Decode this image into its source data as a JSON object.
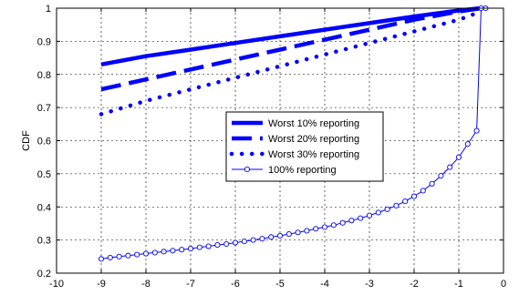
{
  "chart_data": {
    "type": "line",
    "title": "",
    "xlabel": "",
    "ylabel": "CDF",
    "xlim": [
      -10,
      0
    ],
    "ylim": [
      0.2,
      1
    ],
    "xticks": [
      -10,
      -9,
      -8,
      -7,
      -6,
      -5,
      -4,
      -3,
      -2,
      -1,
      0
    ],
    "yticks": [
      0.2,
      0.3,
      0.4,
      0.5,
      0.6,
      0.7,
      0.8,
      0.9,
      1
    ],
    "xtick_labels": [
      "-10",
      "-9",
      "-8",
      "-7",
      "-6",
      "-5",
      "-4",
      "-3",
      "-2",
      "-1",
      "0"
    ],
    "ytick_labels": [
      "0.2",
      "0.3",
      "0.4",
      "0.5",
      "0.6",
      "0.7",
      "0.8",
      "0.9",
      "1"
    ],
    "grid": true,
    "legend_position": "center-right",
    "series": [
      {
        "name": "Worst 10% reporting",
        "style": "solid-thick",
        "color": "#0000ff",
        "x": [
          -9,
          -8,
          -7,
          -6,
          -5,
          -4,
          -3,
          -2,
          -1,
          -0.5
        ],
        "y": [
          0.83,
          0.855,
          0.875,
          0.895,
          0.915,
          0.935,
          0.955,
          0.975,
          0.993,
          1.0
        ]
      },
      {
        "name": "Worst 20% reporting",
        "style": "dashed-thick",
        "color": "#0000ff",
        "x": [
          -9,
          -8,
          -7,
          -6,
          -5,
          -4,
          -3,
          -2,
          -1,
          -0.5
        ],
        "y": [
          0.755,
          0.785,
          0.815,
          0.845,
          0.875,
          0.905,
          0.935,
          0.965,
          0.99,
          1.0
        ]
      },
      {
        "name": "Worst 30% reporting",
        "style": "dotted-thick",
        "color": "#0000ff",
        "x": [
          -9,
          -8,
          -7,
          -6,
          -5,
          -4,
          -3,
          -2,
          -1,
          -0.5
        ],
        "y": [
          0.68,
          0.72,
          0.755,
          0.79,
          0.825,
          0.86,
          0.895,
          0.93,
          0.965,
          0.99
        ]
      },
      {
        "name": "100% reporting",
        "style": "line-circle-markers",
        "color": "#0000ff",
        "x": [
          -9.0,
          -8.8,
          -8.6,
          -8.4,
          -8.2,
          -8.0,
          -7.8,
          -7.6,
          -7.4,
          -7.2,
          -7.0,
          -6.8,
          -6.6,
          -6.4,
          -6.2,
          -6.0,
          -5.8,
          -5.6,
          -5.4,
          -5.2,
          -5.0,
          -4.8,
          -4.6,
          -4.4,
          -4.2,
          -4.0,
          -3.8,
          -3.6,
          -3.4,
          -3.2,
          -3.0,
          -2.8,
          -2.6,
          -2.4,
          -2.2,
          -2.0,
          -1.8,
          -1.6,
          -1.4,
          -1.2,
          -1.0,
          -0.8,
          -0.6,
          -0.5,
          -0.4
        ],
        "y": [
          0.243,
          0.247,
          0.25,
          0.253,
          0.256,
          0.259,
          0.262,
          0.265,
          0.268,
          0.271,
          0.274,
          0.278,
          0.281,
          0.285,
          0.288,
          0.292,
          0.296,
          0.3,
          0.304,
          0.309,
          0.313,
          0.318,
          0.323,
          0.328,
          0.334,
          0.339,
          0.345,
          0.352,
          0.359,
          0.366,
          0.374,
          0.383,
          0.393,
          0.404,
          0.417,
          0.432,
          0.449,
          0.47,
          0.494,
          0.52,
          0.55,
          0.59,
          0.63,
          1.0,
          1.0
        ]
      }
    ]
  }
}
